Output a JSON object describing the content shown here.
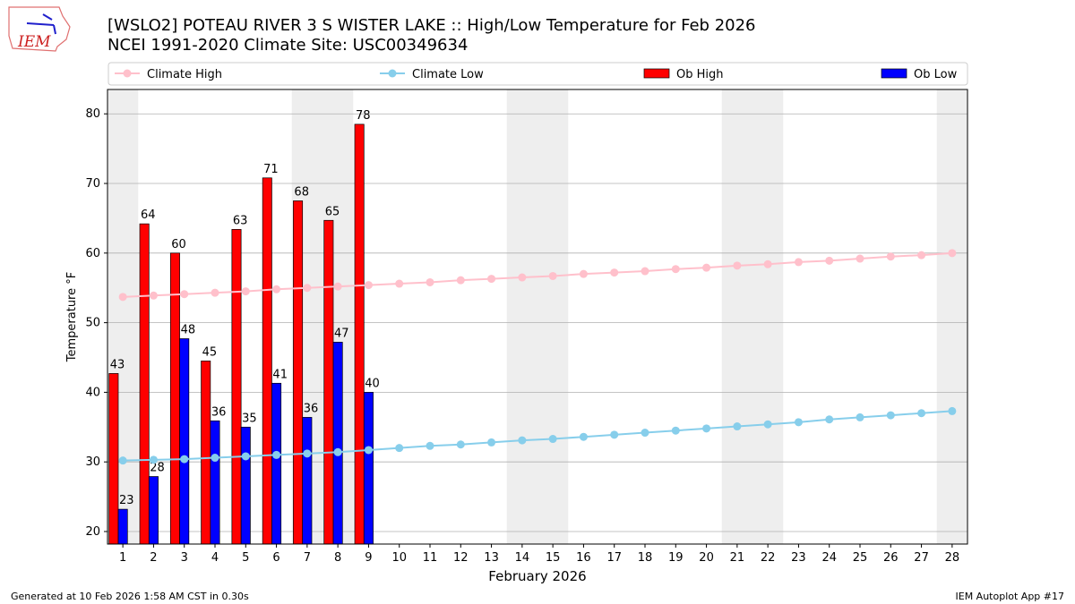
{
  "logo_text": "IEM",
  "footer": {
    "left": "Generated at 10 Feb 2026 1:58 AM CST in 0.30s",
    "right": "IEM Autoplot App #17"
  },
  "chart_data": {
    "type": "bar",
    "title": "[WSLO2] POTEAU RIVER 3 S WISTER LAKE :: High/Low Temperature for Feb 2026",
    "subtitle": "NCEI 1991-2020 Climate Site: USC00349634",
    "xlabel": "February 2026",
    "ylabel": "Temperature °F",
    "xlim": [
      0.5,
      28.5
    ],
    "ylim": [
      18.2,
      83.5
    ],
    "yticks": [
      20,
      30,
      40,
      50,
      60,
      70,
      80
    ],
    "grid": "y",
    "legend_position": "top",
    "weekend_shading": [
      [
        0.5,
        1.5
      ],
      [
        6.5,
        8.5
      ],
      [
        13.5,
        15.5
      ],
      [
        20.5,
        22.5
      ],
      [
        27.5,
        28.5
      ]
    ],
    "days": [
      1,
      2,
      3,
      4,
      5,
      6,
      7,
      8,
      9,
      10,
      11,
      12,
      13,
      14,
      15,
      16,
      17,
      18,
      19,
      20,
      21,
      22,
      23,
      24,
      25,
      26,
      27,
      28
    ],
    "series": [
      {
        "name": "Climate High",
        "kind": "line",
        "color": "#ffc0cb",
        "values": [
          53.7,
          53.9,
          54.1,
          54.3,
          54.5,
          54.8,
          55.0,
          55.2,
          55.4,
          55.6,
          55.8,
          56.1,
          56.3,
          56.5,
          56.7,
          57.0,
          57.2,
          57.4,
          57.7,
          57.9,
          58.2,
          58.4,
          58.7,
          58.9,
          59.2,
          59.5,
          59.7,
          60.0
        ]
      },
      {
        "name": "Climate Low",
        "kind": "line",
        "color": "#87ceeb",
        "values": [
          30.2,
          30.3,
          30.4,
          30.6,
          30.8,
          31.0,
          31.2,
          31.4,
          31.7,
          32.0,
          32.3,
          32.5,
          32.8,
          33.1,
          33.3,
          33.6,
          33.9,
          34.2,
          34.5,
          34.8,
          35.1,
          35.4,
          35.7,
          36.1,
          36.4,
          36.7,
          37.0,
          37.3
        ]
      },
      {
        "name": "Ob High",
        "kind": "bar",
        "color": "#ff0000",
        "values": [
          42.7,
          64.2,
          60.0,
          44.5,
          63.4,
          70.8,
          67.5,
          64.7,
          78.5
        ],
        "labels": [
          "43",
          "64",
          "60",
          "45",
          "63",
          "71",
          "68",
          "65",
          "78"
        ]
      },
      {
        "name": "Ob Low",
        "kind": "bar",
        "color": "#0000ff",
        "values": [
          23.2,
          27.9,
          47.7,
          35.9,
          35.0,
          41.3,
          36.4,
          47.2,
          40.0
        ],
        "labels": [
          "23",
          "28",
          "48",
          "36",
          "35",
          "41",
          "36",
          "47",
          "40"
        ]
      }
    ]
  }
}
